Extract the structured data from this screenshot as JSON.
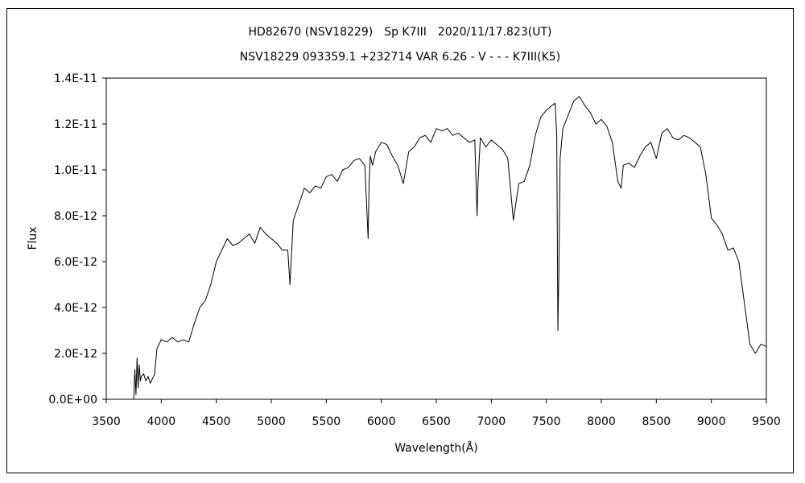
{
  "chart_data": {
    "type": "line",
    "title": "HD82670 (NSV18229)　Sp K7III　2020/11/17.823(UT)",
    "subtitle": "NSV18229 093359.1 +232714 VAR 6.26 - V - - - K7III(K5)",
    "xlabel": "Wavelength(Å)",
    "ylabel": "Flux",
    "xlim": [
      3500,
      9500
    ],
    "ylim": [
      0,
      1.4e-11
    ],
    "x_ticks": [
      3500,
      4000,
      4500,
      5000,
      5500,
      6000,
      6500,
      7000,
      7500,
      8000,
      8500,
      9000,
      9500
    ],
    "x_tick_labels": [
      "3500",
      "4000",
      "4500",
      "5000",
      "5500",
      "6000",
      "6500",
      "7000",
      "7500",
      "8000",
      "8500",
      "9000",
      "9500"
    ],
    "y_ticks": [
      0,
      2e-12,
      4e-12,
      6e-12,
      8e-12,
      1e-11,
      1.2e-11,
      1.4e-11
    ],
    "y_tick_labels": [
      "0.0E+00",
      "2.0E-12",
      "4.0E-12",
      "6.0E-12",
      "8.0E-12",
      "1.0E-11",
      "1.2E-11",
      "1.4E-11"
    ],
    "grid": false,
    "legend": "none",
    "line_color": "#000000",
    "series": [
      {
        "x": [
          3750,
          3760,
          3770,
          3780,
          3790,
          3800,
          3810,
          3820,
          3840,
          3860,
          3880,
          3900,
          3920,
          3940,
          3960,
          3980,
          4000,
          4050,
          4100,
          4150,
          4200,
          4250,
          4300,
          4350,
          4400,
          4450,
          4500,
          4550,
          4600,
          4650,
          4700,
          4750,
          4800,
          4850,
          4900,
          4950,
          5000,
          5050,
          5100,
          5150,
          5170,
          5200,
          5250,
          5300,
          5350,
          5400,
          5450,
          5500,
          5550,
          5600,
          5650,
          5700,
          5750,
          5800,
          5850,
          5880,
          5890,
          5900,
          5920,
          5950,
          6000,
          6050,
          6100,
          6150,
          6200,
          6250,
          6300,
          6350,
          6400,
          6450,
          6500,
          6550,
          6600,
          6650,
          6700,
          6750,
          6800,
          6850,
          6870,
          6880,
          6900,
          6950,
          7000,
          7050,
          7100,
          7150,
          7200,
          7250,
          7300,
          7350,
          7400,
          7450,
          7500,
          7550,
          7580,
          7595,
          7605,
          7615,
          7625,
          7650,
          7700,
          7750,
          7800,
          7850,
          7900,
          7950,
          8000,
          8050,
          8100,
          8150,
          8180,
          8200,
          8250,
          8300,
          8350,
          8400,
          8450,
          8500,
          8550,
          8600,
          8650,
          8700,
          8750,
          8800,
          8850,
          8900,
          8950,
          9000,
          9050,
          9100,
          9150,
          9200,
          9250,
          9300,
          9350,
          9400,
          9450,
          9500
        ],
        "values": [
          0.0,
          1.3e-12,
          2e-13,
          1.8e-12,
          5e-13,
          1.5e-12,
          8e-13,
          1e-12,
          1.1e-12,
          8e-13,
          1e-12,
          7e-13,
          9e-13,
          1.1e-12,
          2.2e-12,
          2.4e-12,
          2.6e-12,
          2.5e-12,
          2.7e-12,
          2.5e-12,
          2.6e-12,
          2.5e-12,
          3.3e-12,
          4e-12,
          4.3e-12,
          5e-12,
          6e-12,
          6.5e-12,
          7e-12,
          6.7e-12,
          6.8e-12,
          7e-12,
          7.2e-12,
          6.8e-12,
          7.5e-12,
          7.2e-12,
          7e-12,
          6.8e-12,
          6.5e-12,
          6.5e-12,
          5e-12,
          7.8e-12,
          8.5e-12,
          9.2e-12,
          9e-12,
          9.3e-12,
          9.2e-12,
          9.7e-12,
          9.8e-12,
          9.5e-12,
          1e-11,
          1.01e-11,
          1.04e-11,
          1.05e-11,
          1.02e-11,
          7e-12,
          9.5e-12,
          1.06e-11,
          1.02e-11,
          1.08e-11,
          1.12e-11,
          1.11e-11,
          1.06e-11,
          1.02e-11,
          9.4e-12,
          1.08e-11,
          1.1e-11,
          1.14e-11,
          1.15e-11,
          1.12e-11,
          1.18e-11,
          1.17e-11,
          1.18e-11,
          1.15e-11,
          1.16e-11,
          1.14e-11,
          1.12e-11,
          1.13e-11,
          8e-12,
          9.5e-12,
          1.14e-11,
          1.1e-11,
          1.13e-11,
          1.11e-11,
          1.09e-11,
          1.05e-11,
          7.8e-12,
          9.4e-12,
          9.5e-12,
          1.02e-11,
          1.15e-11,
          1.23e-11,
          1.26e-11,
          1.28e-11,
          1.29e-11,
          1.15e-11,
          3e-12,
          6e-12,
          1.05e-11,
          1.18e-11,
          1.24e-11,
          1.3e-11,
          1.32e-11,
          1.28e-11,
          1.25e-11,
          1.2e-11,
          1.22e-11,
          1.19e-11,
          1.12e-11,
          9.5e-12,
          9.2e-12,
          1.02e-11,
          1.03e-11,
          1.01e-11,
          1.06e-11,
          1.1e-11,
          1.12e-11,
          1.05e-11,
          1.16e-11,
          1.18e-11,
          1.14e-11,
          1.13e-11,
          1.15e-11,
          1.14e-11,
          1.12e-11,
          1.1e-11,
          9.8e-12,
          7.9e-12,
          7.6e-12,
          7.2e-12,
          6.5e-12,
          6.6e-12,
          6e-12,
          4.2e-12,
          2.4e-12,
          2e-12,
          2.4e-12,
          2.3e-12
        ]
      }
    ]
  }
}
